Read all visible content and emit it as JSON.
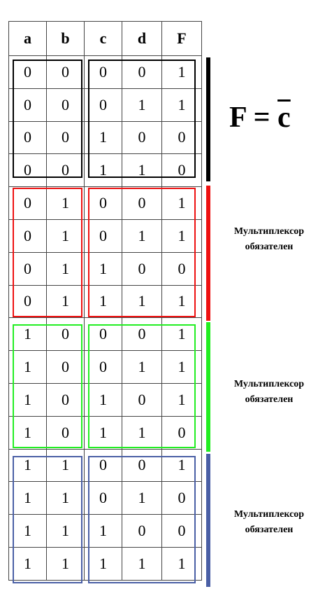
{
  "table": {
    "headers": [
      "a",
      "b",
      "c",
      "d",
      "F"
    ],
    "rows": [
      [
        "0",
        "0",
        "0",
        "0",
        "1"
      ],
      [
        "0",
        "0",
        "0",
        "1",
        "1"
      ],
      [
        "0",
        "0",
        "1",
        "0",
        "0"
      ],
      [
        "0",
        "0",
        "1",
        "1",
        "0"
      ],
      [
        "0",
        "1",
        "0",
        "0",
        "1"
      ],
      [
        "0",
        "1",
        "0",
        "1",
        "1"
      ],
      [
        "0",
        "1",
        "1",
        "0",
        "0"
      ],
      [
        "0",
        "1",
        "1",
        "1",
        "1"
      ],
      [
        "1",
        "0",
        "0",
        "0",
        "1"
      ],
      [
        "1",
        "0",
        "0",
        "1",
        "1"
      ],
      [
        "1",
        "0",
        "1",
        "0",
        "1"
      ],
      [
        "1",
        "0",
        "1",
        "1",
        "0"
      ],
      [
        "1",
        "1",
        "0",
        "0",
        "1"
      ],
      [
        "1",
        "1",
        "0",
        "1",
        "0"
      ],
      [
        "1",
        "1",
        "1",
        "0",
        "0"
      ],
      [
        "1",
        "1",
        "1",
        "1",
        "1"
      ]
    ]
  },
  "groups": [
    {
      "color": "#000000"
    },
    {
      "color": "#ee1111"
    },
    {
      "color": "#22ee22"
    },
    {
      "color": "#4a5fa5"
    }
  ],
  "formula": {
    "lhs": "F",
    "eq": "=",
    "rhs": "c"
  },
  "notes": {
    "group2": {
      "line1": "Мультиплексор",
      "line2": "обязателен"
    },
    "group3": {
      "line1": "Мультиплексор",
      "line2": "обязателен"
    },
    "group4": {
      "line1": "Мультиплексор",
      "line2": "обязателен"
    }
  }
}
